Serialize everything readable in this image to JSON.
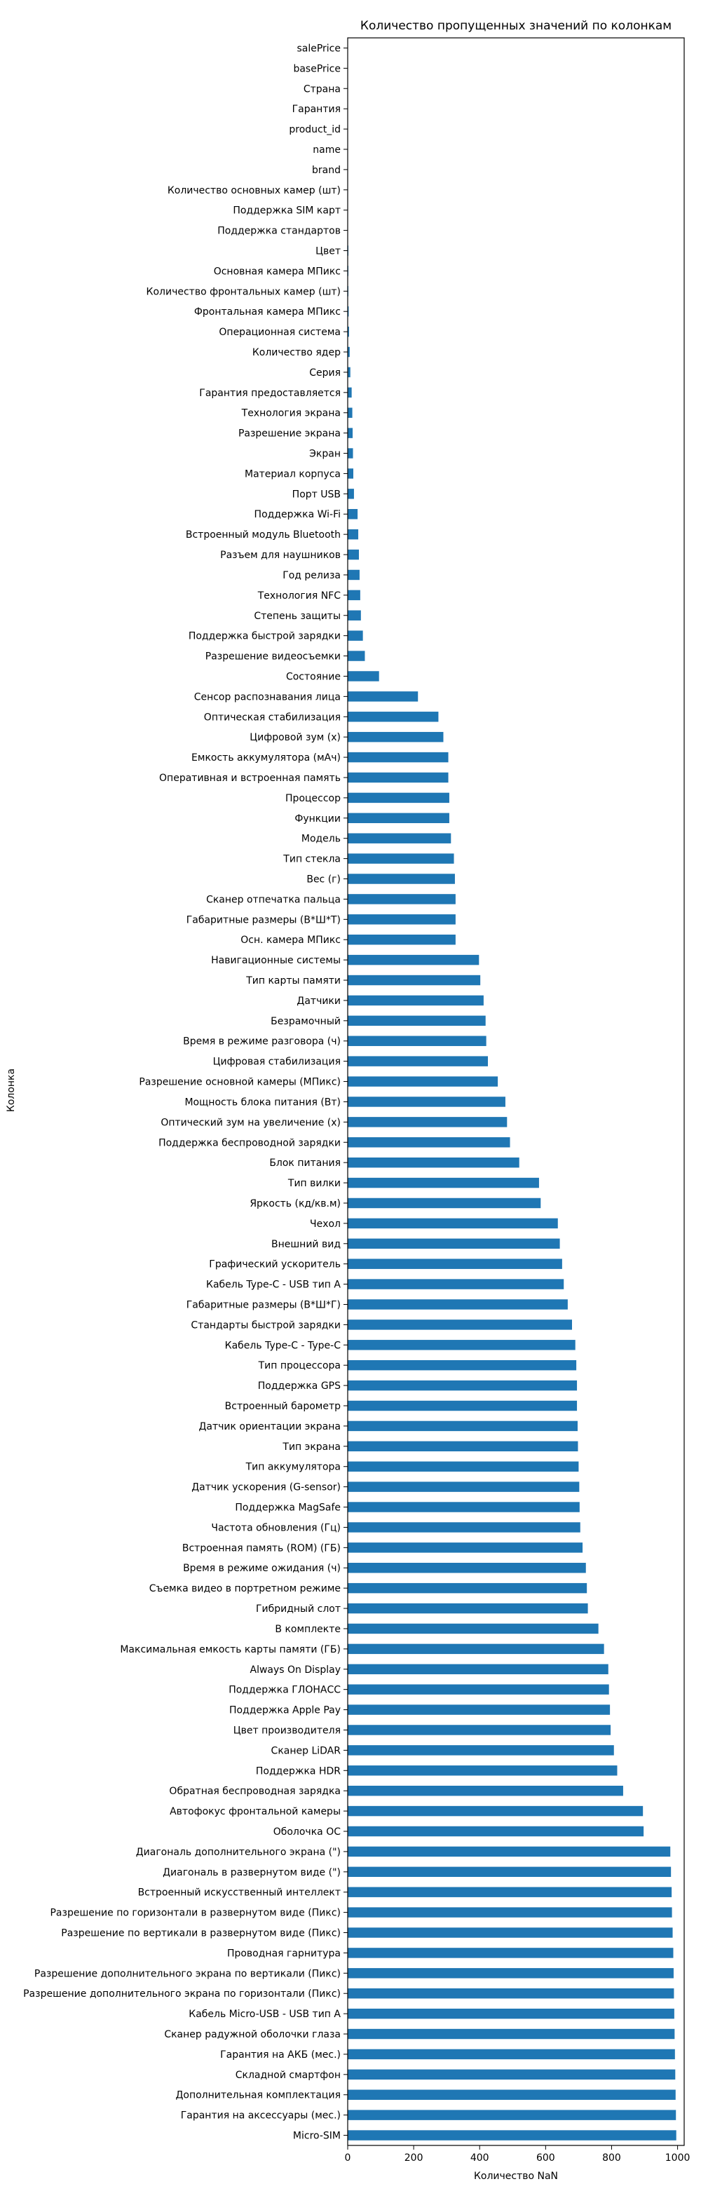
{
  "chart_data": {
    "type": "bar",
    "orientation": "horizontal",
    "title": "Количество пропущенных значений по колонкам",
    "xlabel": "Количество NaN",
    "ylabel": "Колонка",
    "xlim": [
      0,
      1020
    ],
    "xticks": [
      0,
      200,
      400,
      600,
      800,
      1000
    ],
    "grid": false,
    "bar_color": "#1f77b4",
    "categories": [
      "salePrice",
      "basePrice",
      "Страна",
      "Гарантия",
      "product_id",
      "name",
      "brand",
      "Количество основных камер (шт)",
      "Поддержка SIM карт",
      "Поддержка стандартов",
      "Цвет",
      "Основная камера МПикс",
      "Количество фронтальных камер (шт)",
      "Фронтальная камера МПикс",
      "Операционная система",
      "Количество ядер",
      "Серия",
      "Гарантия предоставляется",
      "Технология экрана",
      "Разрешение экрана",
      "Экран",
      "Материал корпуса",
      "Порт USB",
      "Поддержка Wi-Fi",
      "Встроенный модуль Bluetooth",
      "Разъем для наушников",
      "Год релиза",
      "Технология NFC",
      "Степень защиты",
      "Поддержка быстрой зарядки",
      "Разрешение видеосъемки",
      "Состояние",
      "Сенсор распознавания лица",
      "Оптическая стабилизация",
      "Цифровой зум (x)",
      "Емкость аккумулятора (мАч)",
      "Оперативная и встроенная память",
      "Процессор",
      "Функции",
      "Модель",
      "Тип стекла",
      "Вес (г)",
      "Сканер отпечатка пальца",
      "Габаритные размеры (В*Ш*Т)",
      "Осн. камера МПикс",
      "Навигационные системы",
      "Тип карты памяти",
      "Датчики",
      "Безрамочный",
      "Время в режиме разговора (ч)",
      "Цифровая стабилизация",
      "Разрешение основной камеры (МПикс)",
      "Мощность блока питания (Вт)",
      "Оптический зум на увеличение (x)",
      "Поддержка беспроводной зарядки",
      "Блок питания",
      "Тип вилки",
      "Яркость (кд/кв.м)",
      "Чехол",
      "Внешний вид",
      "Графический ускоритель",
      "Кабель Type-C - USB тип A",
      "Габаритные размеры (В*Ш*Г)",
      "Стандарты быстрой зарядки",
      "Кабель Type-C - Type-C",
      "Тип процессора",
      "Поддержка GPS",
      "Встроенный барометр",
      "Датчик ориентации экрана",
      "Тип экрана",
      "Тип аккумулятора",
      "Датчик ускорения (G-sensor)",
      "Поддержка MagSafe",
      "Частота обновления (Гц)",
      "Встроенная память (ROM) (ГБ)",
      "Время в режиме ожидания (ч)",
      "Съемка видео в портретном режиме",
      "Гибридный слот",
      "В комплекте",
      "Максимальная емкость карты памяти (ГБ)",
      "Always On Display",
      "Поддержка ГЛОНАСС",
      "Поддержка Apple Pay",
      "Цвет производителя",
      "Сканер LiDAR",
      "Поддержка HDR",
      "Обратная беспроводная зарядка",
      "Автофокус фронтальной камеры",
      "Оболочка ОС",
      "Диагональ дополнительного экрана (\")",
      "Диагональ в развернутом виде (\")",
      "Встроенный искусственный интеллект",
      "Разрешение по горизонтали в развернутом виде (Пикс)",
      "Разрешение по вертикали в развернутом виде (Пикс)",
      "Проводная гарнитура",
      "Разрешение дополнительного экрана по вертикали (Пикс)",
      "Разрешение дополнительного экрана по горизонтали (Пикс)",
      "Кабель Micro-USB - USB тип A",
      "Сканер радужной оболочки глаза",
      "Гарантия на АКБ (мес.)",
      "Складной смартфон",
      "Дополнительная комплектация",
      "Гарантия на аксессуары (мес.)",
      "Micro-SIM"
    ],
    "values": [
      0,
      0,
      0,
      0,
      0,
      0,
      0,
      1,
      1,
      1,
      2,
      2,
      2,
      3,
      4,
      6,
      8,
      12,
      14,
      15,
      16,
      17,
      19,
      30,
      32,
      34,
      36,
      38,
      40,
      46,
      52,
      95,
      213,
      275,
      290,
      305,
      305,
      308,
      308,
      313,
      322,
      325,
      327,
      327,
      327,
      398,
      402,
      412,
      418,
      420,
      425,
      455,
      478,
      483,
      492,
      520,
      580,
      585,
      637,
      643,
      650,
      655,
      667,
      680,
      690,
      693,
      695,
      695,
      697,
      698,
      700,
      702,
      703,
      705,
      712,
      722,
      725,
      728,
      760,
      777,
      790,
      792,
      795,
      797,
      807,
      817,
      835,
      895,
      897,
      978,
      980,
      982,
      983,
      985,
      987,
      988,
      989,
      990,
      991,
      992,
      993,
      994,
      995,
      996
    ]
  }
}
